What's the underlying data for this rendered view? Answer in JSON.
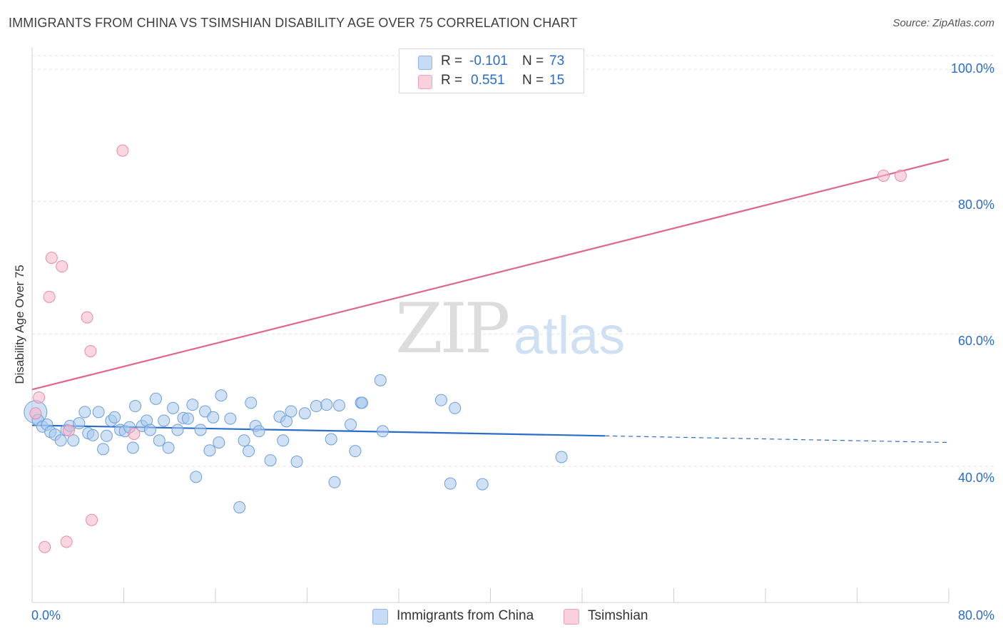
{
  "header": {
    "title": "IMMIGRANTS FROM CHINA VS TSIMSHIAN DISABILITY AGE OVER 75 CORRELATION CHART",
    "source": "Source: ZipAtlas.com"
  },
  "watermark": {
    "zip": "ZIP",
    "atlas": "atlas"
  },
  "legend": {
    "rows": [
      {
        "r_label": "R =",
        "r_value": "-0.101",
        "n_label": "N =",
        "n_value": "73",
        "color": "#aac9ef"
      },
      {
        "r_label": "R =",
        "r_value": "0.551",
        "n_label": "N =",
        "n_value": "15",
        "color": "#f6b5c8"
      }
    ]
  },
  "bottom_legend": [
    {
      "label": "Immigrants from China",
      "color": "#aac9ef"
    },
    {
      "label": "Tsimshian",
      "color": "#f6b5c8"
    }
  ],
  "axes": {
    "y_label": "Disability Age Over 75",
    "y_ticks": [
      "100.0%",
      "80.0%",
      "60.0%",
      "40.0%"
    ],
    "x_ticks": [
      "0.0%",
      "80.0%"
    ]
  },
  "chart_data": {
    "type": "scatter",
    "title": "IMMIGRANTS FROM CHINA VS TSIMSHIAN DISABILITY AGE OVER 75 CORRELATION CHART",
    "xlabel": "",
    "ylabel": "Disability Age Over 75",
    "xlim": [
      0,
      80
    ],
    "ylim": [
      20,
      102
    ],
    "y_ticks": [
      40,
      60,
      80,
      100
    ],
    "series": [
      {
        "name": "Immigrants from China",
        "color": "#aac9ef",
        "stroke": "#6a9fdc",
        "trend": {
          "x0": 0,
          "y0": 46.2,
          "x1": 50,
          "y1": 44.6,
          "dash_to": 80,
          "dash_y": 43.6,
          "color": "#2a6cc9"
        },
        "points": [
          [
            0.3,
            48.2
          ],
          [
            0.5,
            47.0
          ],
          [
            0.9,
            46.0
          ],
          [
            1.3,
            46.3
          ],
          [
            1.6,
            45.2
          ],
          [
            2.0,
            44.8
          ],
          [
            2.5,
            43.9
          ],
          [
            3.0,
            45.5
          ],
          [
            3.3,
            46.1
          ],
          [
            3.6,
            43.9
          ],
          [
            4.1,
            46.5
          ],
          [
            4.6,
            48.2
          ],
          [
            4.9,
            45.0
          ],
          [
            5.3,
            44.7
          ],
          [
            5.8,
            48.2
          ],
          [
            6.2,
            42.6
          ],
          [
            6.5,
            44.6
          ],
          [
            6.9,
            46.9
          ],
          [
            7.2,
            47.4
          ],
          [
            7.7,
            45.5
          ],
          [
            8.1,
            45.3
          ],
          [
            8.5,
            45.9
          ],
          [
            8.8,
            42.8
          ],
          [
            9.0,
            49.1
          ],
          [
            9.6,
            46.1
          ],
          [
            10.0,
            46.9
          ],
          [
            10.3,
            45.5
          ],
          [
            10.8,
            50.2
          ],
          [
            11.1,
            43.9
          ],
          [
            11.5,
            46.9
          ],
          [
            11.9,
            42.8
          ],
          [
            12.3,
            48.8
          ],
          [
            12.7,
            45.5
          ],
          [
            13.2,
            47.3
          ],
          [
            13.6,
            47.2
          ],
          [
            14.0,
            49.3
          ],
          [
            14.3,
            38.4
          ],
          [
            14.7,
            45.5
          ],
          [
            15.1,
            48.3
          ],
          [
            15.5,
            42.4
          ],
          [
            15.8,
            47.4
          ],
          [
            16.3,
            43.6
          ],
          [
            16.5,
            50.7
          ],
          [
            17.3,
            47.2
          ],
          [
            18.1,
            33.8
          ],
          [
            18.5,
            43.9
          ],
          [
            18.9,
            42.3
          ],
          [
            19.1,
            49.6
          ],
          [
            19.5,
            46.1
          ],
          [
            19.8,
            45.3
          ],
          [
            20.8,
            40.9
          ],
          [
            21.6,
            47.5
          ],
          [
            21.9,
            43.9
          ],
          [
            22.2,
            46.8
          ],
          [
            22.6,
            48.3
          ],
          [
            23.1,
            40.7
          ],
          [
            23.8,
            48.0
          ],
          [
            24.8,
            49.1
          ],
          [
            25.7,
            49.3
          ],
          [
            26.1,
            44.1
          ],
          [
            26.4,
            37.6
          ],
          [
            26.8,
            49.2
          ],
          [
            27.8,
            46.3
          ],
          [
            28.2,
            42.3
          ],
          [
            28.7,
            49.6
          ],
          [
            28.8,
            49.6
          ],
          [
            30.4,
            53.0
          ],
          [
            30.6,
            45.3
          ],
          [
            35.7,
            50.0
          ],
          [
            36.5,
            37.4
          ],
          [
            36.9,
            48.8
          ],
          [
            39.3,
            37.3
          ],
          [
            46.2,
            41.4
          ]
        ]
      },
      {
        "name": "Tsimshian",
        "color": "#f6b5c8",
        "stroke": "#e98aa8",
        "trend": {
          "x0": 0,
          "y0": 51.6,
          "x1": 80,
          "y1": 86.4,
          "color": "#e0668f"
        },
        "points": [
          [
            0.3,
            48.0
          ],
          [
            0.6,
            50.4
          ],
          [
            1.1,
            27.8
          ],
          [
            1.5,
            65.6
          ],
          [
            1.7,
            71.5
          ],
          [
            2.6,
            70.2
          ],
          [
            3.0,
            28.6
          ],
          [
            3.2,
            45.4
          ],
          [
            4.8,
            62.5
          ],
          [
            5.1,
            57.4
          ],
          [
            5.2,
            31.9
          ],
          [
            7.9,
            87.7
          ],
          [
            8.9,
            44.9
          ],
          [
            74.3,
            83.9
          ],
          [
            75.8,
            83.9
          ]
        ]
      }
    ]
  }
}
